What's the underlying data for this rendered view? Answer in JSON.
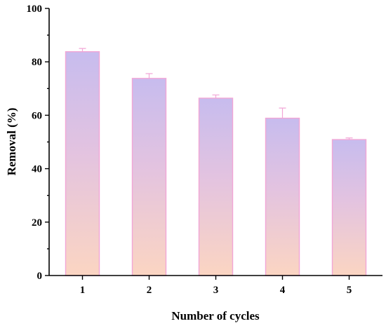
{
  "chart_data": {
    "type": "bar",
    "categories": [
      "1",
      "2",
      "3",
      "4",
      "5"
    ],
    "values": [
      83.8,
      73.8,
      66.4,
      58.9,
      50.9
    ],
    "errors": [
      1.2,
      1.8,
      1.2,
      3.8,
      0.6
    ],
    "xlabel": "Number of cycles",
    "ylabel": "Removal (%)",
    "ylim": [
      0,
      100
    ],
    "yticks": [
      0,
      20,
      40,
      60,
      80,
      100
    ],
    "grid": false,
    "colors": {
      "bar_top": "#c7bcee",
      "bar_bottom": "#fbd5c2",
      "bar_edge": "#f2a6d6",
      "axis": "#000000"
    }
  }
}
